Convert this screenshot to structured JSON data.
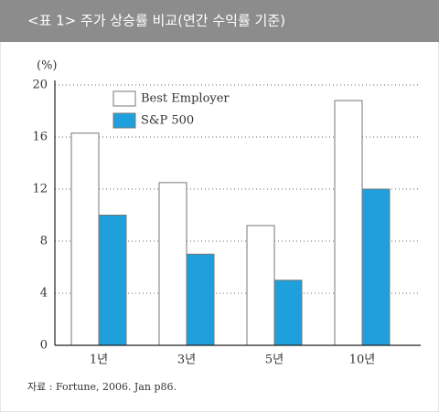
{
  "chart_data": {
    "type": "bar",
    "title": "<표 1> 주가 상승률 비교(연간 수익률 기준)",
    "y_label": "(%)",
    "categories": [
      "1년",
      "3년",
      "5년",
      "10년"
    ],
    "series": [
      {
        "name": "Best Employer",
        "color": "#ffffff",
        "values": [
          16.3,
          12.5,
          9.2,
          18.8
        ]
      },
      {
        "name": "S&P 500",
        "color": "#1fa0dc",
        "values": [
          10,
          7,
          5,
          12
        ]
      }
    ],
    "ylim": [
      0,
      20
    ],
    "yticks": [
      0,
      4,
      8,
      12,
      16,
      20
    ],
    "grid": true,
    "source": "자료 : Fortune, 2006. Jan p86."
  }
}
